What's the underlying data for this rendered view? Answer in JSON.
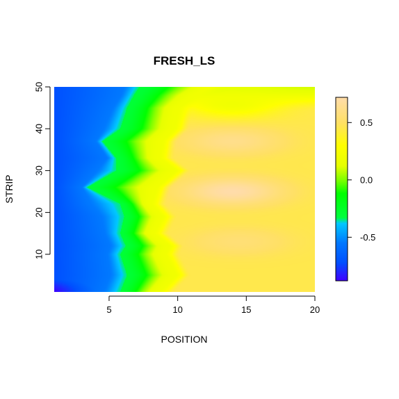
{
  "chart_data": {
    "type": "heatmap",
    "title": "FRESH_LS",
    "xlabel": "POSITION",
    "ylabel": "STRIP",
    "xlim": [
      1,
      20
    ],
    "ylim": [
      1,
      50
    ],
    "x_ticks": [
      5,
      10,
      15,
      20
    ],
    "y_ticks": [
      10,
      20,
      30,
      40,
      50
    ],
    "x_tick_labels": [
      "5",
      "10",
      "15",
      "20"
    ],
    "y_tick_labels": [
      "10",
      "20",
      "30",
      "40",
      "50"
    ],
    "value_range": [
      -0.88,
      0.72
    ],
    "colorbar_ticks": [
      -0.5,
      0.0,
      0.5
    ],
    "colorbar_tick_labels": [
      "-0.5",
      "0.0",
      "0.5"
    ],
    "colormap_stops": [
      {
        "value": -0.88,
        "color": "#4000ff"
      },
      {
        "value": -0.72,
        "color": "#0050ff"
      },
      {
        "value": -0.55,
        "color": "#0078ff"
      },
      {
        "value": -0.38,
        "color": "#00c8ff"
      },
      {
        "value": -0.33,
        "color": "#00ff40"
      },
      {
        "value": -0.12,
        "color": "#00ff00"
      },
      {
        "value": 0.0,
        "color": "#7fff00"
      },
      {
        "value": 0.12,
        "color": "#e6ff00"
      },
      {
        "value": 0.3,
        "color": "#ffff00"
      },
      {
        "value": 0.5,
        "color": "#ffe066"
      },
      {
        "value": 0.72,
        "color": "#ffdcaa"
      }
    ],
    "strip_boundaries": {
      "strips": [
        1,
        5,
        10,
        12,
        15,
        19,
        22,
        26,
        30,
        33,
        37,
        40,
        45,
        48,
        50
      ],
      "blue_to_cyan": [
        4.5,
        5.0,
        4.8,
        5.0,
        4.6,
        4.3,
        3.5,
        3.0,
        4.0,
        4.8,
        4.0,
        4.5,
        5.2,
        5.8,
        6.0
      ],
      "cyan_to_green": [
        5.8,
        6.3,
        5.8,
        6.2,
        5.8,
        6.1,
        5.8,
        3.4,
        5.5,
        5.5,
        4.5,
        5.8,
        6.3,
        6.8,
        7.2
      ],
      "green_to_yellow": [
        8.6,
        9.8,
        9.0,
        9.3,
        8.2,
        8.8,
        8.0,
        8.4,
        9.8,
        8.6,
        8.8,
        9.7,
        10.0,
        11.2,
        12.4
      ]
    },
    "peak_regions": [
      {
        "position": 14.0,
        "strip": 25.0,
        "value": 0.72
      },
      {
        "position": 14.0,
        "strip": 37.0,
        "value": 0.62
      },
      {
        "position": 14.5,
        "strip": 13.0,
        "value": 0.55
      },
      {
        "position": 14.0,
        "strip": 46.0,
        "value": 0.2
      }
    ],
    "background_value_right": 0.45,
    "top_right_value": 0.1
  }
}
